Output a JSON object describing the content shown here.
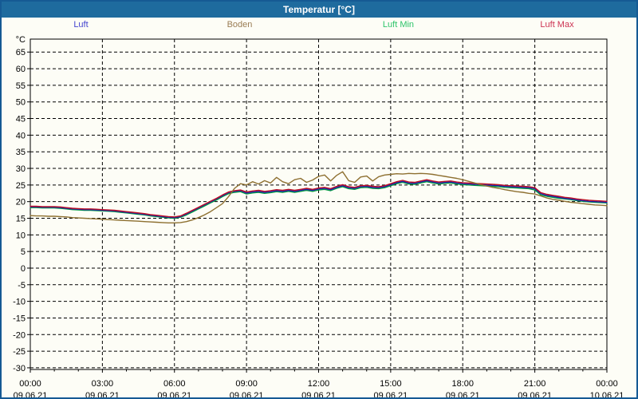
{
  "window": {
    "title": "Temperatur [°C]"
  },
  "theme": {
    "titlebar_bg": "#1e6b9e",
    "window_border": "#155a94",
    "content_bg": "#fdfdf6",
    "axis_color": "#000000",
    "grid_color": "#000000",
    "tick_text_color": "#000000"
  },
  "chart_data": {
    "type": "line",
    "title": "Temperatur [°C]",
    "grid": "dashed",
    "legend_position": "top",
    "x_axis": {
      "start_hour": 0,
      "end_hour": 24,
      "major_tick_hours": 3,
      "minor_tick_hours": 1,
      "tick_labels": [
        {
          "time": "00:00",
          "date": "09.06.21"
        },
        {
          "time": "03:00",
          "date": "09.06.21"
        },
        {
          "time": "06:00",
          "date": "09.06.21"
        },
        {
          "time": "09:00",
          "date": "09.06.21"
        },
        {
          "time": "12:00",
          "date": "09.06.21"
        },
        {
          "time": "15:00",
          "date": "09.06.21"
        },
        {
          "time": "18:00",
          "date": "09.06.21"
        },
        {
          "time": "21:00",
          "date": "09.06.21"
        },
        {
          "time": "00:00",
          "date": "10.06.21"
        }
      ]
    },
    "y_axis": {
      "unit": "°C",
      "min": -30,
      "max": 65,
      "tick_step": 5
    },
    "sample_start_hour": 0,
    "sample_step_hours": 0.25,
    "series": [
      {
        "name": "Luft",
        "color": "#2020b0",
        "legend_color": "#4343cf",
        "values": [
          18.4,
          18.4,
          18.3,
          18.3,
          18.3,
          18.2,
          18.0,
          17.8,
          17.7,
          17.6,
          17.6,
          17.5,
          17.4,
          17.3,
          17.2,
          17.0,
          16.8,
          16.6,
          16.4,
          16.2,
          15.9,
          15.7,
          15.5,
          15.3,
          15.2,
          15.5,
          16.3,
          17.2,
          18.1,
          19.0,
          19.9,
          20.8,
          21.8,
          22.7,
          23.1,
          23.3,
          22.6,
          22.9,
          23.1,
          22.8,
          23.0,
          23.3,
          23.1,
          23.4,
          23.1,
          23.4,
          23.7,
          23.4,
          23.8,
          24.0,
          23.6,
          24.3,
          24.8,
          24.2,
          24.0,
          24.5,
          24.6,
          24.3,
          24.2,
          24.5,
          25.1,
          25.7,
          26.1,
          25.6,
          25.5,
          25.9,
          26.3,
          25.9,
          25.6,
          25.8,
          25.9,
          25.6,
          25.4,
          25.3,
          25.2,
          25.1,
          25.0,
          24.9,
          24.8,
          24.6,
          24.5,
          24.4,
          24.3,
          24.2,
          23.9,
          22.4,
          21.9,
          21.6,
          21.3,
          21.0,
          20.8,
          20.5,
          20.3,
          20.1,
          20.0,
          19.9,
          19.8
        ]
      },
      {
        "name": "Boden",
        "color": "#8e7031",
        "legend_color": "#9a7d54",
        "values": [
          15.8,
          15.7,
          15.7,
          15.6,
          15.6,
          15.5,
          15.4,
          15.2,
          15.1,
          15.0,
          14.9,
          14.8,
          14.7,
          14.6,
          14.5,
          14.4,
          14.3,
          14.2,
          14.1,
          14.0,
          13.9,
          13.8,
          13.7,
          13.6,
          13.6,
          13.7,
          14.0,
          14.5,
          15.2,
          16.0,
          17.0,
          18.2,
          19.4,
          21.5,
          24.0,
          25.4,
          25.0,
          26.0,
          25.3,
          26.3,
          25.6,
          27.3,
          26.0,
          25.4,
          26.6,
          27.0,
          25.8,
          26.5,
          27.6,
          28.0,
          26.2,
          27.9,
          29.0,
          26.3,
          25.8,
          27.4,
          27.7,
          26.2,
          27.5,
          28.0,
          28.2,
          28.4,
          28.3,
          28.5,
          28.4,
          28.5,
          28.4,
          28.2,
          27.9,
          27.6,
          27.3,
          27.0,
          26.6,
          26.1,
          25.6,
          25.1,
          24.7,
          24.3,
          24.0,
          23.6,
          23.3,
          23.0,
          22.8,
          22.5,
          22.3,
          21.7,
          21.1,
          20.7,
          20.4,
          20.1,
          19.8,
          19.6,
          19.4,
          19.2,
          19.0,
          18.9,
          18.8
        ]
      },
      {
        "name": "Luft Min",
        "color": "#009a3c",
        "legend_color": "#2ec46a",
        "values": [
          18.2,
          18.2,
          18.1,
          18.1,
          18.1,
          18.0,
          17.8,
          17.6,
          17.5,
          17.4,
          17.4,
          17.3,
          17.2,
          17.1,
          17.0,
          16.8,
          16.6,
          16.4,
          16.2,
          16.0,
          15.7,
          15.5,
          15.3,
          15.1,
          15.0,
          15.3,
          16.0,
          16.9,
          17.8,
          18.7,
          19.6,
          20.5,
          21.5,
          22.4,
          22.8,
          23.0,
          22.3,
          22.6,
          22.8,
          22.5,
          22.7,
          23.0,
          22.8,
          23.1,
          22.8,
          23.1,
          23.4,
          23.1,
          23.5,
          23.7,
          23.3,
          24.0,
          24.5,
          23.9,
          23.7,
          24.2,
          24.3,
          24.0,
          23.9,
          24.2,
          24.8,
          25.4,
          25.8,
          25.3,
          25.2,
          25.6,
          26.0,
          25.6,
          25.3,
          25.5,
          25.6,
          25.3,
          25.1,
          25.0,
          24.9,
          24.8,
          24.7,
          24.6,
          24.5,
          24.3,
          24.2,
          24.1,
          24.0,
          23.9,
          23.5,
          22.0,
          21.6,
          21.3,
          21.0,
          20.8,
          20.6,
          20.3,
          20.1,
          19.9,
          19.8,
          19.7,
          19.6
        ]
      },
      {
        "name": "Luft Max",
        "color": "#bb1022",
        "legend_color": "#cc3352",
        "values": [
          18.6,
          18.6,
          18.5,
          18.5,
          18.5,
          18.4,
          18.2,
          18.0,
          17.9,
          17.8,
          17.8,
          17.7,
          17.6,
          17.5,
          17.4,
          17.2,
          17.0,
          16.8,
          16.6,
          16.4,
          16.1,
          15.9,
          15.7,
          15.5,
          15.4,
          15.7,
          16.5,
          17.4,
          18.3,
          19.2,
          20.1,
          21.0,
          22.0,
          22.9,
          23.3,
          23.5,
          22.9,
          23.2,
          23.4,
          23.1,
          23.3,
          23.6,
          23.4,
          23.7,
          23.4,
          23.7,
          24.0,
          23.7,
          24.1,
          24.3,
          23.9,
          24.6,
          25.1,
          24.5,
          24.3,
          24.8,
          24.9,
          24.6,
          24.5,
          24.8,
          25.4,
          26.0,
          26.4,
          25.9,
          25.8,
          26.2,
          26.6,
          26.2,
          25.9,
          26.1,
          26.2,
          25.9,
          25.7,
          25.6,
          25.5,
          25.4,
          25.3,
          25.2,
          25.1,
          24.9,
          24.8,
          24.7,
          24.6,
          24.5,
          24.2,
          22.7,
          22.2,
          21.9,
          21.6,
          21.3,
          21.1,
          20.8,
          20.6,
          20.4,
          20.3,
          20.2,
          20.1
        ]
      }
    ]
  }
}
